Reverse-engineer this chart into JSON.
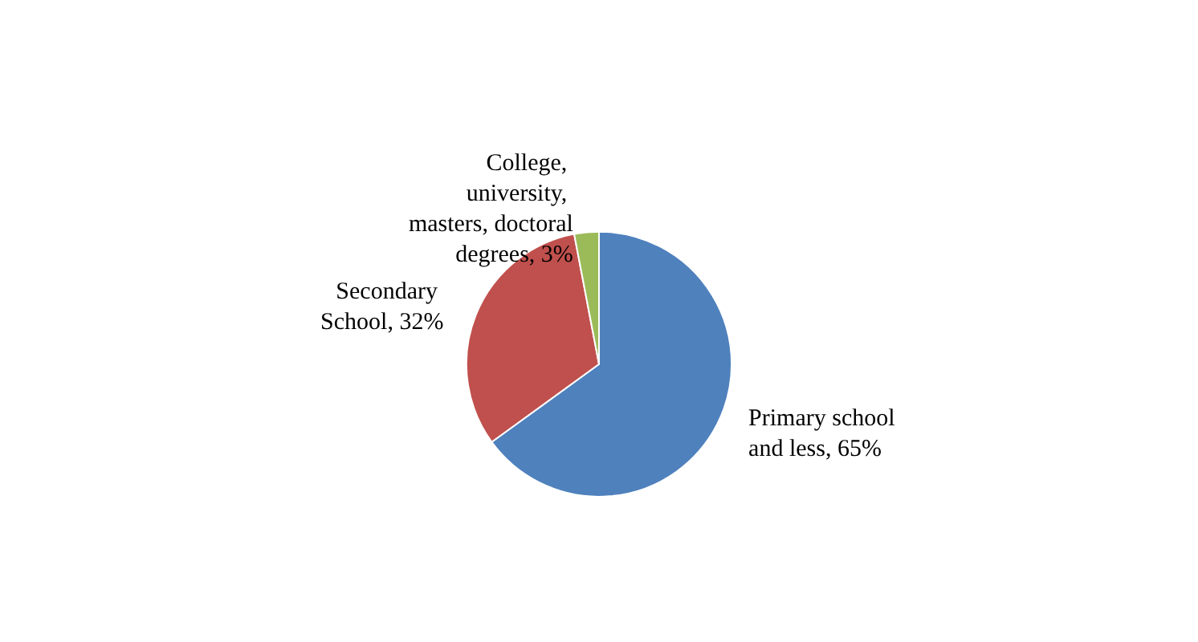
{
  "chart_data": {
    "type": "pie",
    "categories": [
      "Primary school and less",
      "Secondary School",
      "College, university, masters, doctoral degrees"
    ],
    "values": [
      65,
      32,
      3
    ],
    "colors": [
      "#4f81bd",
      "#c0504d",
      "#9bbb59"
    ],
    "value_labels": [
      "65%",
      "32%",
      "3%"
    ],
    "legend": false
  }
}
